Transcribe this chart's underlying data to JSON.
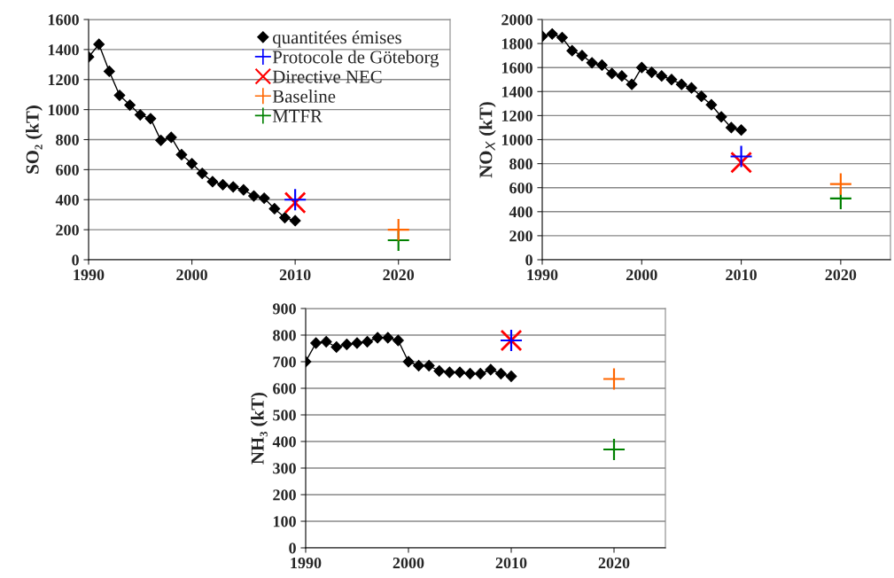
{
  "chart_data": [
    {
      "type": "line",
      "ylabel": "SO₂ (kT)",
      "xlim": [
        1990,
        2025
      ],
      "xticks": [
        1990,
        2000,
        2010,
        2020
      ],
      "ylim": [
        0,
        1600
      ],
      "yticks": [
        0,
        200,
        400,
        600,
        800,
        1000,
        1200,
        1400,
        1600
      ],
      "grid": "y",
      "legend": "top right",
      "series": [
        {
          "name": "quantitées émises",
          "marker": "diamond",
          "color": "#000000",
          "x": [
            1990,
            1991,
            1992,
            1993,
            1994,
            1995,
            1996,
            1997,
            1998,
            1999,
            2000,
            2001,
            2002,
            2003,
            2004,
            2005,
            2006,
            2007,
            2008,
            2009,
            2010
          ],
          "values": [
            1350,
            1435,
            1255,
            1095,
            1030,
            965,
            940,
            795,
            815,
            700,
            640,
            575,
            520,
            500,
            485,
            465,
            425,
            410,
            340,
            280,
            260
          ]
        },
        {
          "name": "Protocole de Göteborg",
          "type": "scatter",
          "marker": "cross",
          "color": "#0000ff",
          "x": [
            2010
          ],
          "values": [
            400
          ]
        },
        {
          "name": "Directive NEC",
          "type": "scatter",
          "marker": "x",
          "color": "#ff0000",
          "x": [
            2010
          ],
          "values": [
            380
          ]
        },
        {
          "name": "Baseline",
          "type": "scatter",
          "marker": "cross",
          "color": "#ff6600",
          "x": [
            2020
          ],
          "values": [
            200
          ]
        },
        {
          "name": "MTFR",
          "type": "scatter",
          "marker": "cross",
          "color": "#008000",
          "x": [
            2020
          ],
          "values": [
            130
          ]
        }
      ]
    },
    {
      "type": "line",
      "ylabel": "NO$_{X}$ (kT)",
      "xlim": [
        1990,
        2025
      ],
      "xticks": [
        1990,
        2000,
        2010,
        2020
      ],
      "ylim": [
        0,
        2000
      ],
      "yticks": [
        0,
        200,
        400,
        600,
        800,
        1000,
        1200,
        1400,
        1600,
        1800,
        2000
      ],
      "grid": "y",
      "series": [
        {
          "marker": "diamond",
          "color": "#000000",
          "x": [
            1990,
            1991,
            1992,
            1993,
            1994,
            1995,
            1996,
            1997,
            1998,
            1999,
            2000,
            2001,
            2002,
            2003,
            2004,
            2005,
            2006,
            2007,
            2008,
            2009,
            2010
          ],
          "values": [
            1860,
            1880,
            1850,
            1740,
            1700,
            1640,
            1620,
            1550,
            1530,
            1460,
            1600,
            1560,
            1530,
            1500,
            1460,
            1430,
            1360,
            1290,
            1190,
            1100,
            1080
          ]
        },
        {
          "type": "scatter",
          "marker": "cross",
          "color": "#0000ff",
          "x": [
            2010
          ],
          "values": [
            860
          ]
        },
        {
          "type": "scatter",
          "marker": "x",
          "color": "#ff0000",
          "x": [
            2010
          ],
          "values": [
            810
          ]
        },
        {
          "type": "scatter",
          "marker": "cross",
          "color": "#ff6600",
          "x": [
            2020
          ],
          "values": [
            630
          ]
        },
        {
          "type": "scatter",
          "marker": "cross",
          "color": "#008000",
          "x": [
            2020
          ],
          "values": [
            510
          ]
        }
      ]
    },
    {
      "type": "line",
      "ylabel": "NH₃ (kT)",
      "xlim": [
        1990,
        2025
      ],
      "xticks": [
        1990,
        2000,
        2010,
        2020
      ],
      "ylim": [
        0,
        900
      ],
      "yticks": [
        0,
        100,
        200,
        300,
        400,
        500,
        600,
        700,
        800,
        900
      ],
      "grid": "y",
      "series": [
        {
          "marker": "diamond",
          "color": "#000000",
          "x": [
            1990,
            1991,
            1992,
            1993,
            1994,
            1995,
            1996,
            1997,
            1998,
            1999,
            2000,
            2001,
            2002,
            2003,
            2004,
            2005,
            2006,
            2007,
            2008,
            2009,
            2010
          ],
          "values": [
            700,
            770,
            775,
            755,
            765,
            770,
            775,
            790,
            790,
            780,
            700,
            685,
            685,
            665,
            660,
            660,
            655,
            655,
            670,
            655,
            645
          ]
        },
        {
          "type": "scatter",
          "marker": "cross",
          "color": "#0000ff",
          "x": [
            2010
          ],
          "values": [
            780
          ]
        },
        {
          "type": "scatter",
          "marker": "x",
          "color": "#ff0000",
          "x": [
            2010
          ],
          "values": [
            780
          ]
        },
        {
          "type": "scatter",
          "marker": "cross",
          "color": "#ff6600",
          "x": [
            2020
          ],
          "values": [
            635
          ]
        },
        {
          "type": "scatter",
          "marker": "cross",
          "color": "#008000",
          "x": [
            2020
          ],
          "values": [
            370
          ]
        }
      ]
    }
  ]
}
